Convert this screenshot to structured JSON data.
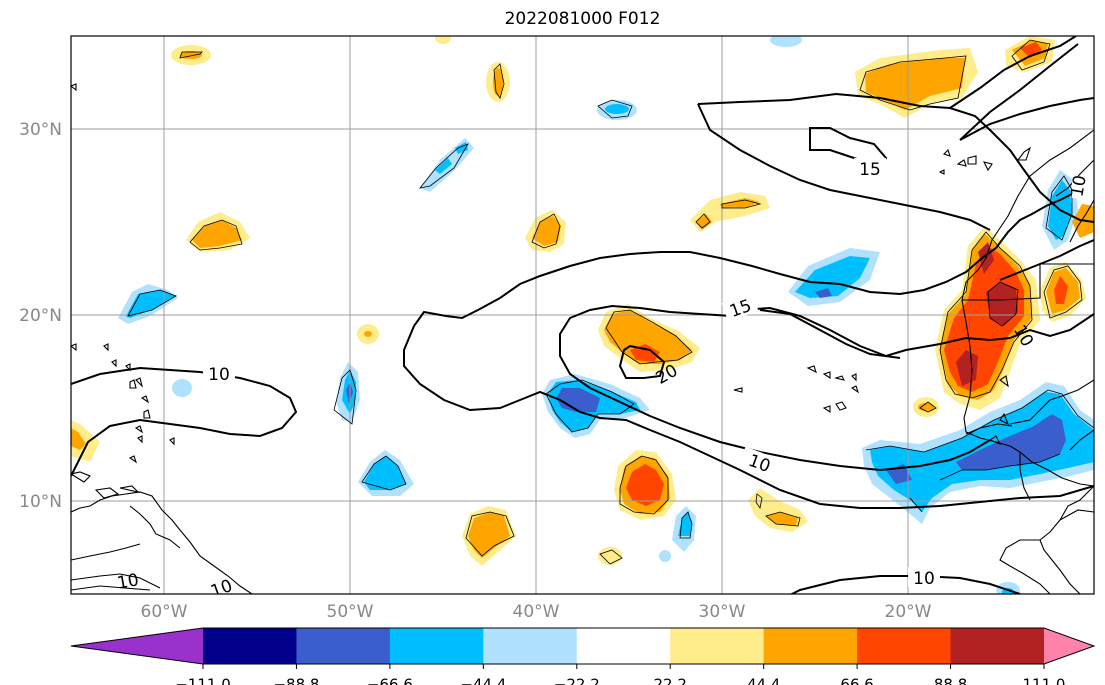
{
  "title": "2022081000 F012",
  "axes": {
    "lon_ticks": [
      {
        "lon": -60,
        "label": "60°W"
      },
      {
        "lon": -50,
        "label": "50°W"
      },
      {
        "lon": -40,
        "label": "40°W"
      },
      {
        "lon": -30,
        "label": "30°W"
      },
      {
        "lon": -20,
        "label": "20°W"
      }
    ],
    "lat_ticks": [
      {
        "lat": 30,
        "label": "30°N"
      },
      {
        "lat": 20,
        "label": "20°N"
      },
      {
        "lat": 10,
        "label": "10°N"
      }
    ],
    "lon_range": [
      -65,
      -10
    ],
    "lat_range": [
      5,
      35
    ],
    "grid": true
  },
  "colorbar": {
    "colors": [
      "#9932CC",
      "#00008B",
      "#3A5FCD",
      "#00BFFF",
      "#B0E2FF",
      "#FFFFFF",
      "#FFEC8B",
      "#FFA500",
      "#FF4500",
      "#B22222",
      "#FF82AB"
    ],
    "tick_values": [
      -111.0,
      -88.8,
      -66.6,
      -44.4,
      -22.2,
      22.2,
      44.4,
      66.6,
      88.8,
      111.0
    ],
    "tick_labels": [
      "−111.0",
      "−88.8",
      "−66.6",
      "−44.4",
      "−22.2",
      "22.2",
      "44.4",
      "66.6",
      "88.8",
      "111.0"
    ],
    "extend": "both"
  },
  "contours": {
    "label_10": "10",
    "label_15": "15",
    "label_20": "20"
  }
}
